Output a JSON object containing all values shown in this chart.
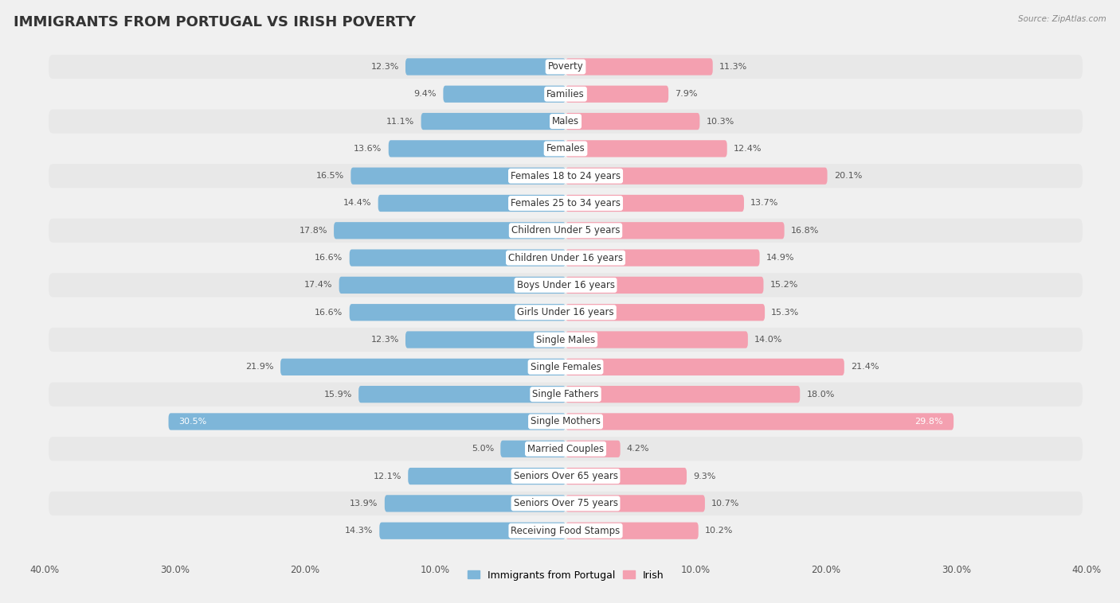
{
  "title": "IMMIGRANTS FROM PORTUGAL VS IRISH POVERTY",
  "source": "Source: ZipAtlas.com",
  "categories": [
    "Poverty",
    "Families",
    "Males",
    "Females",
    "Females 18 to 24 years",
    "Females 25 to 34 years",
    "Children Under 5 years",
    "Children Under 16 years",
    "Boys Under 16 years",
    "Girls Under 16 years",
    "Single Males",
    "Single Females",
    "Single Fathers",
    "Single Mothers",
    "Married Couples",
    "Seniors Over 65 years",
    "Seniors Over 75 years",
    "Receiving Food Stamps"
  ],
  "portugal_values": [
    12.3,
    9.4,
    11.1,
    13.6,
    16.5,
    14.4,
    17.8,
    16.6,
    17.4,
    16.6,
    12.3,
    21.9,
    15.9,
    30.5,
    5.0,
    12.1,
    13.9,
    14.3
  ],
  "irish_values": [
    11.3,
    7.9,
    10.3,
    12.4,
    20.1,
    13.7,
    16.8,
    14.9,
    15.2,
    15.3,
    14.0,
    21.4,
    18.0,
    29.8,
    4.2,
    9.3,
    10.7,
    10.2
  ],
  "portugal_color": "#7EB6D9",
  "irish_color": "#F4A0B0",
  "portugal_label": "Immigrants from Portugal",
  "irish_label": "Irish",
  "axis_limit": 40.0,
  "background_color": "#f0f0f0",
  "row_bg_even": "#e8e8e8",
  "row_bg_odd": "#f0f0f0",
  "title_fontsize": 13,
  "label_fontsize": 8.5,
  "value_fontsize": 8.0,
  "axis_tick_fontsize": 8.5
}
